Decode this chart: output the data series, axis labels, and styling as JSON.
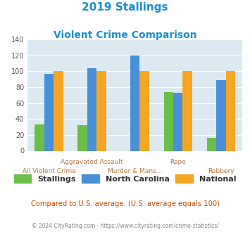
{
  "title_line1": "2019 Stallings",
  "title_line2": "Violent Crime Comparison",
  "categories": [
    "All Violent Crime",
    "Aggravated Assault",
    "Murder & Mans...",
    "Rape",
    "Robbery"
  ],
  "stallings": [
    33,
    32,
    0,
    74,
    16
  ],
  "north_carolina": [
    97,
    104,
    120,
    73,
    89
  ],
  "national": [
    100,
    100,
    100,
    100,
    100
  ],
  "color_stallings": "#6abf4b",
  "color_nc": "#4a90d9",
  "color_national": "#f5a623",
  "ylim": [
    0,
    140
  ],
  "yticks": [
    0,
    20,
    40,
    60,
    80,
    100,
    120,
    140
  ],
  "bg_color": "#dce9f0",
  "title_color": "#1a8fd1",
  "label_color": "#b07840",
  "legend_text_color": "#333333",
  "footer_color": "#c05000",
  "copyright_color": "#888888",
  "footer_note": "Compared to U.S. average. (U.S. average equals 100)",
  "copyright": "© 2024 CityRating.com - https://www.cityrating.com/crime-statistics/",
  "legend_labels": [
    "Stallings",
    "North Carolina",
    "National"
  ],
  "bar_width": 0.22
}
